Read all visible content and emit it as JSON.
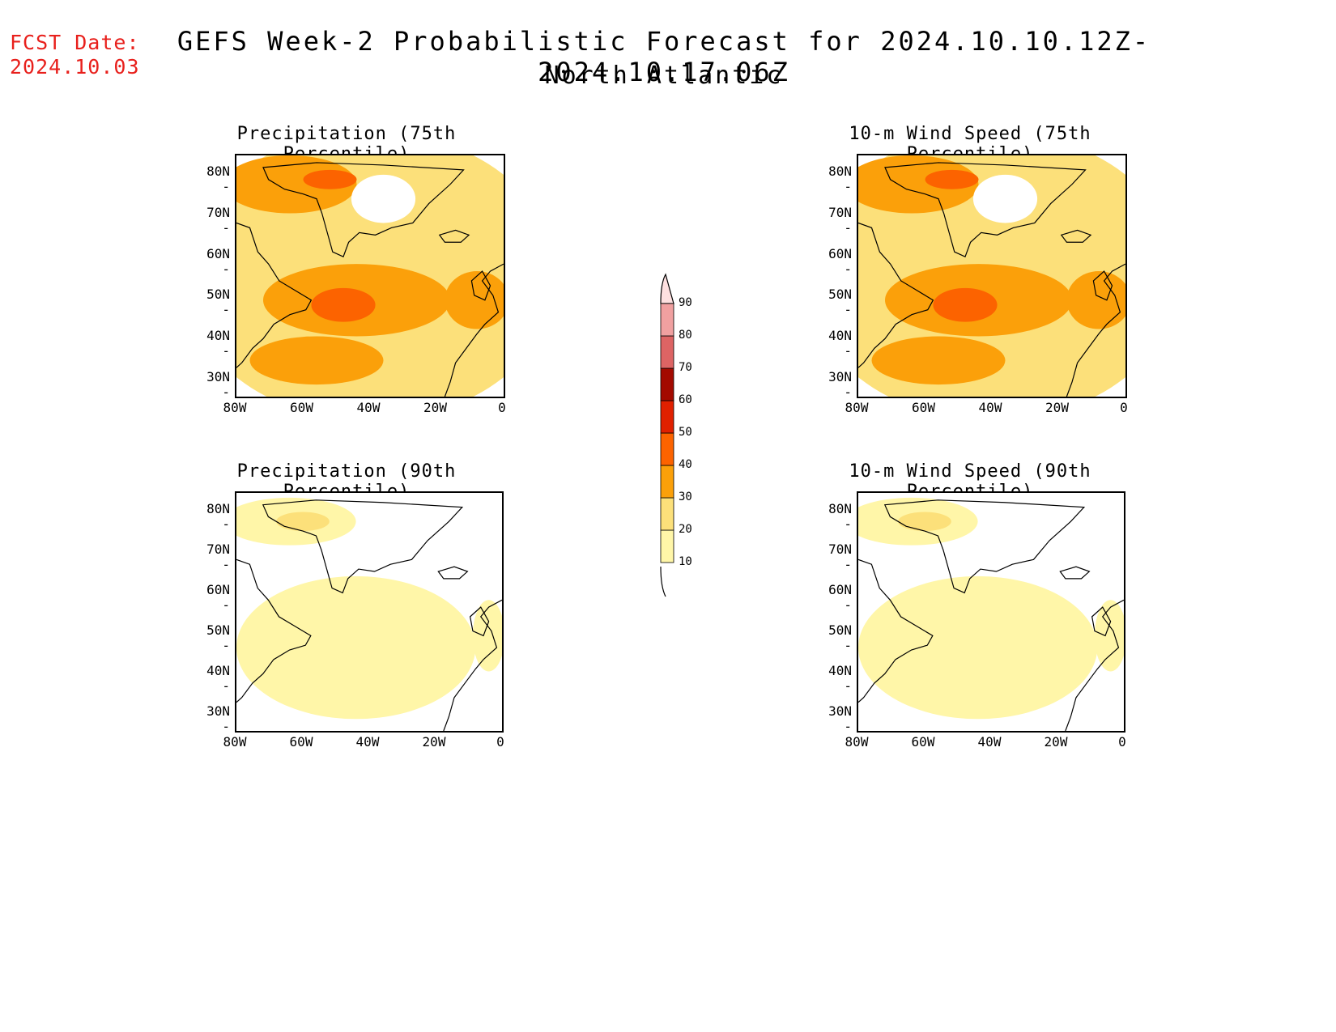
{
  "header": {
    "fcst_label": "FCST Date:",
    "fcst_date": "2024.10.03",
    "title": "GEFS Week-2 Probabilistic Forecast for 2024.10.10.12Z-2024.10.17.06Z",
    "region": "North Atlantic"
  },
  "axes": {
    "lat_labels": [
      "80N",
      "70N",
      "60N",
      "50N",
      "40N",
      "30N"
    ],
    "lon_labels": [
      "80W",
      "60W",
      "40W",
      "20W",
      "0"
    ]
  },
  "panels": [
    {
      "title": "Precipitation (75th Percentile)",
      "intensity": "high"
    },
    {
      "title": "10-m Wind Speed (75th Percentile)",
      "intensity": "high"
    },
    {
      "title": "Precipitation (90th Percentile)",
      "intensity": "low"
    },
    {
      "title": "10-m Wind Speed (90th Percentile)",
      "intensity": "low"
    }
  ],
  "colorbar": {
    "levels": [
      "10",
      "20",
      "30",
      "40",
      "50",
      "60",
      "70",
      "80",
      "90"
    ],
    "colors": [
      "#fff6a8",
      "#fce07a",
      "#fba00a",
      "#fc6300",
      "#e02000",
      "#a30a00",
      "#dd6464",
      "#f0a0a0",
      "#fde0e0"
    ]
  }
}
